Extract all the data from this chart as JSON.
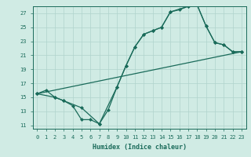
{
  "xlabel": "Humidex (Indice chaleur)",
  "bg_color": "#d0ebe4",
  "grid_color": "#afd4cc",
  "line_color": "#1a6b5a",
  "xlim": [
    -0.5,
    23.5
  ],
  "ylim": [
    10.5,
    28.0
  ],
  "xticks": [
    0,
    1,
    2,
    3,
    4,
    5,
    6,
    7,
    8,
    9,
    10,
    11,
    12,
    13,
    14,
    15,
    16,
    17,
    18,
    19,
    20,
    21,
    22,
    23
  ],
  "yticks": [
    11,
    13,
    15,
    17,
    19,
    21,
    23,
    25,
    27
  ],
  "series1_x": [
    0,
    1,
    2,
    3,
    4,
    5,
    6,
    7,
    8,
    9,
    10,
    11,
    12,
    13,
    14,
    15,
    16,
    17,
    18,
    19,
    20,
    21,
    22,
    23
  ],
  "series1_y": [
    15.5,
    16.0,
    15.0,
    14.5,
    13.8,
    11.8,
    11.8,
    11.2,
    13.2,
    16.5,
    19.5,
    22.2,
    24.0,
    24.5,
    25.0,
    27.2,
    27.5,
    28.0,
    28.2,
    25.2,
    22.8,
    22.5,
    21.5,
    21.5
  ],
  "series2_x": [
    0,
    2,
    3,
    5,
    7,
    9,
    10,
    11,
    12,
    13,
    14,
    15,
    17,
    18,
    19,
    20,
    21,
    22,
    23
  ],
  "series2_y": [
    15.5,
    15.0,
    14.5,
    13.5,
    11.2,
    16.5,
    19.5,
    22.2,
    24.0,
    24.5,
    25.0,
    27.2,
    28.0,
    28.2,
    25.2,
    22.8,
    22.5,
    21.5,
    21.5
  ],
  "series3_x": [
    0,
    23
  ],
  "series3_y": [
    15.5,
    21.5
  ]
}
